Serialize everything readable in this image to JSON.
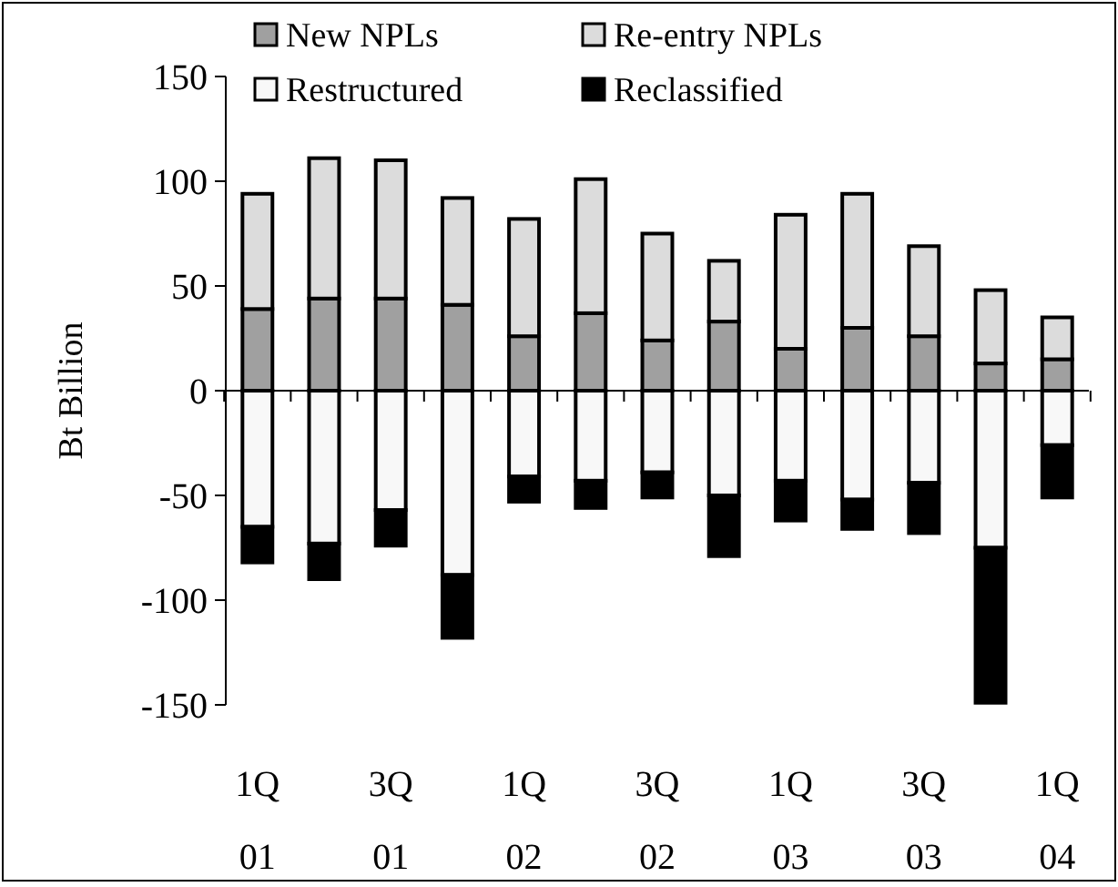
{
  "chart_data": {
    "type": "bar",
    "stacked": true,
    "ylabel": "Bt Billion",
    "categories": [
      "1Q\n01",
      null,
      "3Q\n01",
      null,
      "1Q\n02",
      null,
      "3Q\n02",
      null,
      "1Q\n03",
      null,
      "3Q\n03",
      null,
      "1Q\n04"
    ],
    "series": [
      {
        "name": "New NPLs",
        "color": "#a0a0a0",
        "values": [
          39,
          44,
          44,
          41,
          26,
          37,
          24,
          33,
          20,
          30,
          26,
          13,
          15
        ]
      },
      {
        "name": "Re-entry NPLs",
        "color": "#dcdcdc",
        "values": [
          55,
          67,
          66,
          51,
          56,
          64,
          51,
          29,
          64,
          64,
          43,
          35,
          20
        ]
      },
      {
        "name": "Restructured",
        "color": "#f8f8f8",
        "values": [
          -65,
          -73,
          -57,
          -88,
          -41,
          -43,
          -39,
          -50,
          -43,
          -52,
          -44,
          -75,
          -26
        ]
      },
      {
        "name": "Reclassified",
        "color": "#000000",
        "values": [
          -17,
          -17,
          -17,
          -30,
          -12,
          -13,
          -12,
          -29,
          -19,
          -14,
          -24,
          -74,
          -25
        ]
      }
    ],
    "ylim": [
      -150,
      150
    ],
    "yticks": [
      -150,
      -100,
      -50,
      0,
      50,
      100,
      150
    ],
    "legend": "top"
  }
}
